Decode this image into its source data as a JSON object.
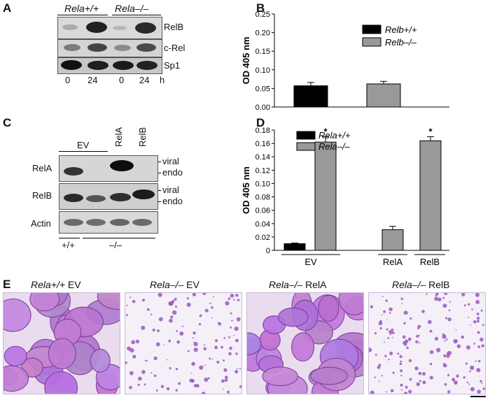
{
  "panelA": {
    "label": "A",
    "header_wt": "Rela+/+",
    "header_ko": "Rela–/–",
    "bands": [
      "RelB",
      "c-Rel",
      "Sp1"
    ],
    "times": [
      "0",
      "24",
      "0",
      "24"
    ],
    "time_unit": "h"
  },
  "panelB": {
    "label": "B"
  },
  "panelC": {
    "label": "C",
    "lane_groups": [
      "EV",
      "RelA",
      "RelB"
    ],
    "rows": [
      "RelA",
      "RelB",
      "Actin"
    ],
    "marks_relA": [
      "viral",
      "endo"
    ],
    "marks_relB": [
      "viral",
      "endo"
    ],
    "genotypes": [
      "+/+",
      "–/–"
    ]
  },
  "panelD": {
    "label": "D"
  },
  "panelE": {
    "label": "E",
    "captions": [
      {
        "italic": "Rela+/+",
        "plain": " EV"
      },
      {
        "italic": "Rela–/–",
        "plain": " EV"
      },
      {
        "italic": "Rela–/–",
        "plain": " RelA"
      },
      {
        "italic": "Rela–/–",
        "plain": " RelB"
      }
    ]
  },
  "chart_data": [
    {
      "type": "bar",
      "panel": "B",
      "ylabel": "OD 405 nm",
      "ylim": [
        0,
        0.25
      ],
      "yticks": [
        "0.00",
        "0.05",
        "0.10",
        "0.15",
        "0.20",
        "0.25"
      ],
      "categories": [
        "Relb+/+",
        "Relb–/–"
      ],
      "values": [
        0.057,
        0.062
      ],
      "errors": [
        0.009,
        0.007
      ],
      "colors": [
        "#000000",
        "#999999"
      ],
      "legend": [
        "Relb+/+",
        "Relb–/–"
      ],
      "legend_position": "top-right"
    },
    {
      "type": "bar",
      "panel": "D",
      "ylabel": "OD 405 nm",
      "ylim": [
        0,
        0.18
      ],
      "yticks": [
        "0",
        "0.02",
        "0.04",
        "0.06",
        "0.08",
        "0.10",
        "0.12",
        "0.14",
        "0.16",
        "0.18"
      ],
      "categories": [
        "EV",
        "RelA",
        "RelB"
      ],
      "series": [
        {
          "name": "Rela+/+",
          "color": "#000000",
          "values": [
            0.01,
            null,
            null
          ],
          "errors": [
            0.001,
            null,
            null
          ]
        },
        {
          "name": "Rela–/–",
          "color": "#999999",
          "values": [
            0.162,
            0.031,
            0.164
          ],
          "errors": [
            0.008,
            0.005,
            0.006
          ]
        }
      ],
      "bar_annotations": [
        "*",
        "",
        "*"
      ],
      "legend_position": "top-left"
    }
  ]
}
